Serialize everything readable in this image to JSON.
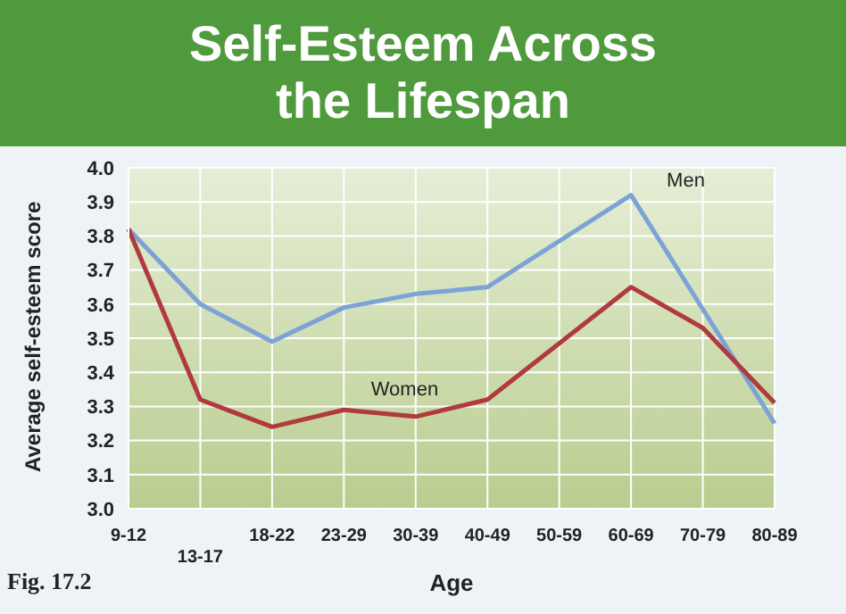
{
  "chart_data": {
    "type": "line",
    "title": "Self-Esteem Across the Lifespan",
    "xlabel": "Age",
    "ylabel": "Average self-esteem score",
    "annotations": [
      "Fig. 17.2"
    ],
    "categories": [
      "9-12",
      "13-17",
      "18-22",
      "23-29",
      "30-39",
      "40-49",
      "50-59",
      "60-69",
      "70-79",
      "80-89"
    ],
    "series": [
      {
        "name": "Men",
        "color": "#7ba3d6",
        "values": [
          3.82,
          3.6,
          3.49,
          3.59,
          3.63,
          3.65,
          null,
          3.92,
          null,
          3.25
        ]
      },
      {
        "name": "Women",
        "color": "#b03a3e",
        "values": [
          3.82,
          3.32,
          3.24,
          3.29,
          3.27,
          3.32,
          null,
          3.65,
          3.53,
          3.31
        ]
      }
    ],
    "ylim": [
      3.0,
      4.0
    ],
    "yticks": [
      {
        "value": 3.0,
        "label": "3.0"
      },
      3.1,
      3.2,
      3.3,
      3.4,
      3.5,
      3.6,
      3.7,
      3.8,
      3.9,
      {
        "value": 4.0,
        "label": "4.0"
      }
    ],
    "grid": true,
    "legend": false,
    "marker": "none",
    "line_style": "solid"
  }
}
